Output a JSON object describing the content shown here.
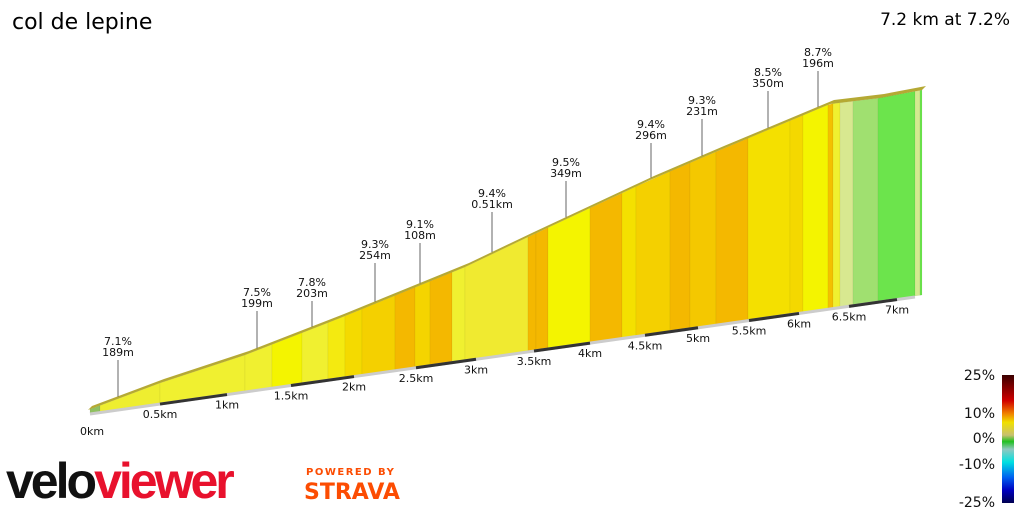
{
  "title": "col de lepine",
  "summary": "7.2 km at 7.2%",
  "chart_data": {
    "type": "area",
    "xlabel": "",
    "ylabel": "",
    "x_ticks": [
      "0km",
      "0.5km",
      "1km",
      "1.5km",
      "2km",
      "2.5km",
      "3km",
      "3.5km",
      "4km",
      "4.5km",
      "5km",
      "5.5km",
      "6km",
      "6.5km",
      "7km"
    ],
    "annotations": [
      {
        "grade": "7.1%",
        "length": "189m"
      },
      {
        "grade": "7.5%",
        "length": "199m"
      },
      {
        "grade": "7.8%",
        "length": "203m"
      },
      {
        "grade": "9.3%",
        "length": "254m"
      },
      {
        "grade": "9.1%",
        "length": "108m"
      },
      {
        "grade": "9.4%",
        "length": "0.51km"
      },
      {
        "grade": "9.5%",
        "length": "349m"
      },
      {
        "grade": "9.4%",
        "length": "296m"
      },
      {
        "grade": "9.3%",
        "length": "231m"
      },
      {
        "grade": "8.5%",
        "length": "350m"
      },
      {
        "grade": "8.7%",
        "length": "196m"
      }
    ],
    "segment_colors": [
      "#8fc060",
      "#eeee30",
      "#f0f030",
      "#f0f030",
      "#f4f400",
      "#f0f030",
      "#f4ea10",
      "#f4da00",
      "#f4d000",
      "#f4b800",
      "#f4d400",
      "#f4b800",
      "#f0f030",
      "#f0ea30",
      "#f4b800",
      "#f4b800",
      "#f4f400",
      "#f4b800",
      "#f4e000",
      "#f4d000",
      "#f4b800",
      "#f4c800",
      "#f4b800",
      "#f4e000",
      "#f4d800",
      "#f4f400",
      "#f4c000",
      "#f0f030",
      "#d8e890",
      "#a0e070",
      "#6ce44c",
      "#d4ea90",
      "#6ce44c"
    ],
    "legend": {
      "ticks": [
        "25%",
        "10%",
        "0%",
        "-10%",
        "-25%"
      ]
    }
  },
  "logo": {
    "text": "veloviewer",
    "powered_by": "POWERED BY",
    "strava": "STRAVA"
  }
}
